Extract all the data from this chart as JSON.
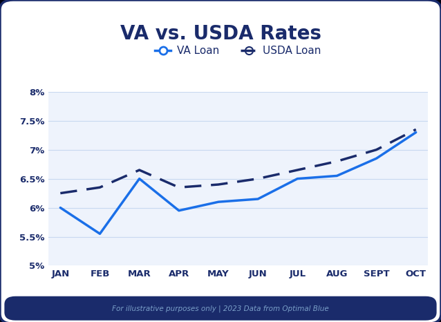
{
  "title": "VA vs. USDA Rates",
  "months": [
    "JAN",
    "FEB",
    "MAR",
    "APR",
    "MAY",
    "JUN",
    "JUL",
    "AUG",
    "SEPT",
    "OCT"
  ],
  "va_loan": [
    6.0,
    5.55,
    6.5,
    5.95,
    6.1,
    6.15,
    6.5,
    6.55,
    6.85,
    7.3
  ],
  "usda_loan": [
    6.25,
    6.35,
    6.65,
    6.35,
    6.4,
    6.5,
    6.65,
    6.8,
    7.0,
    7.35
  ],
  "va_color": "#1a6fe8",
  "usda_color": "#1a2b6b",
  "ylim": [
    5.0,
    8.0
  ],
  "yticks": [
    5.0,
    5.5,
    6.0,
    6.5,
    7.0,
    7.5,
    8.0
  ],
  "ytick_labels": [
    "5%",
    "5.5%",
    "6%",
    "6.5%",
    "7%",
    "7.5%",
    "8%"
  ],
  "background_color": "#ffffff",
  "plot_bg_color": "#eef3fc",
  "border_color": "#1a2b6b",
  "footer_text": "For illustrative purposes only | 2023 Data from Optimal Blue",
  "footer_bg": "#1a2b6b",
  "footer_text_color": "#7a9fc8",
  "legend_va": "VA Loan",
  "legend_usda": "USDA Loan",
  "title_color": "#1a2b6b",
  "title_fontsize": 20,
  "axis_label_fontsize": 9.5,
  "grid_color": "#c8d8f0",
  "tick_label_color": "#1a2b6b"
}
